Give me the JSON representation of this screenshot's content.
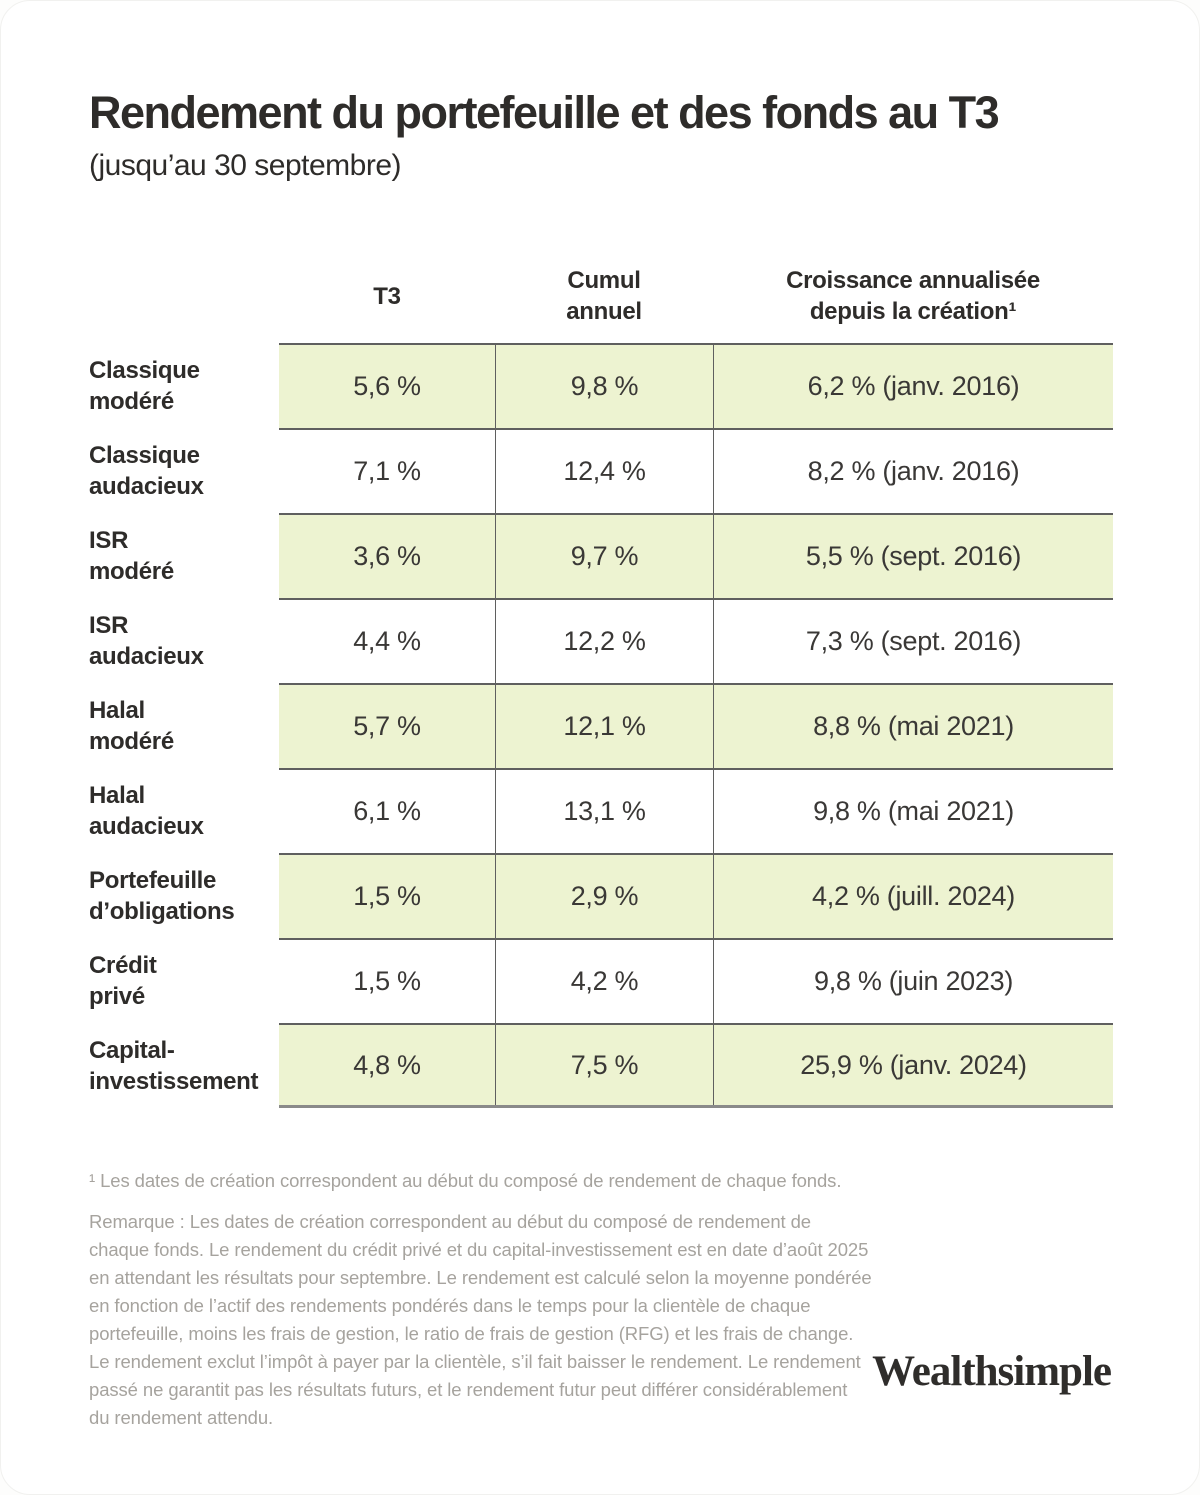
{
  "page": {
    "title": "Rendement du portefeuille et des fonds au T3",
    "subtitle": "(jusqu’au 30 septembre)"
  },
  "table": {
    "columns": [
      "T3",
      "Cumul\nannuel",
      "Croissance annualisée\ndepuis la création¹"
    ],
    "rows": [
      {
        "label": "Classique\nmodéré",
        "t3": "5,6 %",
        "cumul": "9,8 %",
        "croissance": "6,2 % (janv. 2016)"
      },
      {
        "label": "Classique\naudacieux",
        "t3": "7,1 %",
        "cumul": "12,4 %",
        "croissance": "8,2 % (janv. 2016)"
      },
      {
        "label": "ISR\nmodéré",
        "t3": "3,6 %",
        "cumul": "9,7 %",
        "croissance": "5,5 % (sept. 2016)"
      },
      {
        "label": "ISR\naudacieux",
        "t3": "4,4 %",
        "cumul": "12,2 %",
        "croissance": "7,3 % (sept. 2016)"
      },
      {
        "label": "Halal\nmodéré",
        "t3": "5,7 %",
        "cumul": "12,1 %",
        "croissance": "8,8 % (mai 2021)"
      },
      {
        "label": "Halal\naudacieux",
        "t3": "6,1 %",
        "cumul": "13,1 %",
        "croissance": "9,8 % (mai 2021)"
      },
      {
        "label": "Portefeuille\nd’obligations",
        "t3": "1,5 %",
        "cumul": "2,9 %",
        "croissance": "4,2 % (juill. 2024)"
      },
      {
        "label": "Crédit\nprivé",
        "t3": "1,5 %",
        "cumul": "4,2 %",
        "croissance": "9,8 % (juin 2023)"
      },
      {
        "label": "Capital-\ninvestissement",
        "t3": "4,8 %",
        "cumul": "7,5 %",
        "croissance": "25,9 % (janv. 2024)"
      }
    ]
  },
  "footnotes": {
    "footnote1": "¹ Les dates de création correspondent au début du composé de rendement de chaque fonds.",
    "remark": "Remarque : Les dates de création correspondent au début du composé de rendement de chaque fonds. Le rendement du crédit privé et du capital-investissement est en date d’août 2025 en attendant les résultats pour septembre. Le rendement est calculé selon la moyenne pondérée en fonction de l’actif des rendements pondérés dans le temps pour la clientèle de chaque portefeuille, moins les frais de gestion, le ratio de frais de gestion (RFG) et les frais de change. Le rendement exclut l’impôt à payer par la clientèle, s’il fait baisser le rendement. Le rendement passé ne garantit pas les résultats futurs, et le rendement futur peut différer considérablement du rendement attendu."
  },
  "logo": {
    "text": "Wealthsimple"
  },
  "colors": {
    "row_highlight": "#edf3d1",
    "grid_line": "#5f5f5f",
    "footnote_text": "#a6a39e",
    "heading_text": "#2e2c2a"
  }
}
